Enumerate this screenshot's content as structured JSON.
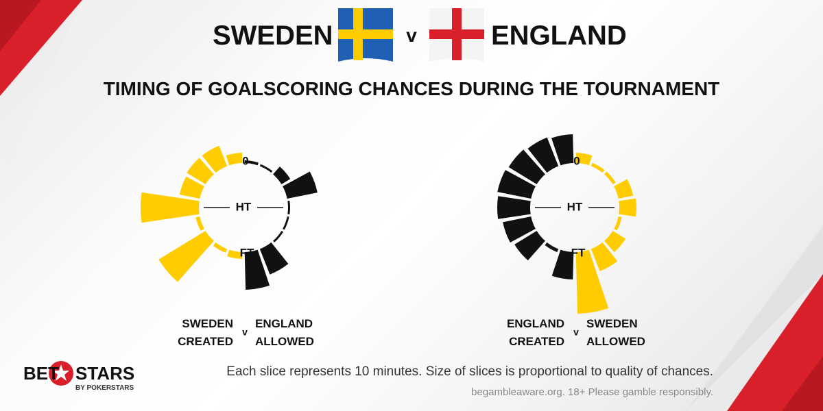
{
  "header": {
    "home": "SWEDEN",
    "separator": "v",
    "away": "ENGLAND",
    "title": "TIMING OF GOALSCORING CHANCES DURING THE TOURNAMENT"
  },
  "chart_data": [
    {
      "type": "radial_bar",
      "axis_labels": [
        "0",
        "HT",
        "FT"
      ],
      "separator": "v",
      "series": [
        {
          "name": "SWEDEN CREATED",
          "color": "#ffcc00",
          "side": "left",
          "values": [
            15,
            32,
            32,
            30,
            85,
            6,
            80,
            6,
            10
          ]
        },
        {
          "name": "ENGLAND ALLOWED",
          "color": "#111111",
          "side": "right",
          "values": [
            4,
            3,
            15,
            45,
            3,
            3,
            3,
            40,
            55
          ]
        }
      ]
    },
    {
      "type": "radial_bar",
      "axis_labels": [
        "0",
        "HT",
        "FT"
      ],
      "separator": "v",
      "series": [
        {
          "name": "ENGLAND CREATED",
          "color": "#111111",
          "side": "left",
          "values": [
            42,
            45,
            48,
            50,
            48,
            42,
            38,
            5,
            40
          ]
        },
        {
          "name": "SWEDEN ALLOWED",
          "color": "#ffcc00",
          "side": "right",
          "values": [
            15,
            5,
            5,
            22,
            25,
            5,
            22,
            35,
            90
          ]
        }
      ]
    }
  ],
  "footer": {
    "note": "Each slice represents 10 minutes. Size of slices is proportional to quality of chances.",
    "disclaimer": "begambleaware.org.  18+ Please gamble responsibly."
  },
  "logo": {
    "left": "BET",
    "right": "STARS",
    "sub": "BY POKERSTARS"
  }
}
